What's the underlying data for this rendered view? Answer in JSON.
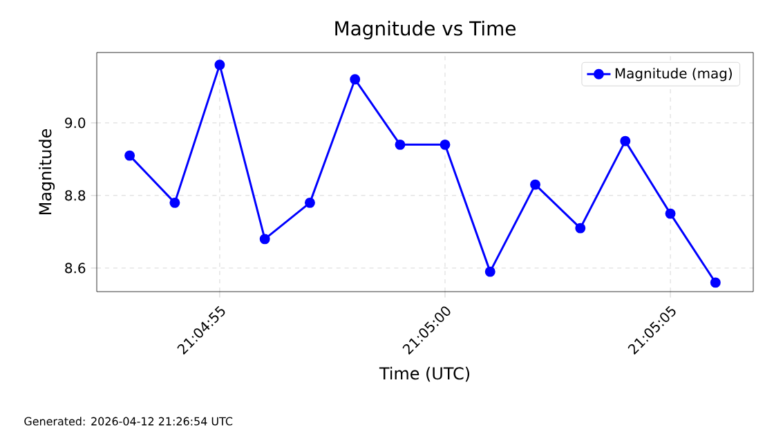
{
  "chart_data": {
    "type": "line",
    "title": "Magnitude vs Time",
    "xlabel": "Time (UTC)",
    "ylabel": "Magnitude",
    "x": [
      21.081389,
      21.081667,
      21.081944,
      21.082222,
      21.0825,
      21.082778,
      21.083056,
      21.083333,
      21.083611,
      21.083889,
      21.084167,
      21.084444,
      21.084722,
      21.085
    ],
    "series": [
      {
        "name": "Magnitude (mag)",
        "color": "#0000ff",
        "values": [
          8.91,
          8.78,
          9.16,
          8.68,
          8.78,
          9.12,
          8.94,
          8.94,
          8.59,
          8.83,
          8.71,
          8.95,
          8.75,
          8.56
        ]
      }
    ],
    "xlim": [
      21.081186,
      21.085233
    ],
    "ylim": [
      8.535,
      9.194
    ],
    "xticks": [
      {
        "value": 21.081944,
        "label": "21:04:55"
      },
      {
        "value": 21.083333,
        "label": "21:05:00"
      },
      {
        "value": 21.084722,
        "label": "21:05:05"
      }
    ],
    "yticks": [
      {
        "value": 8.6,
        "label": "8.6"
      },
      {
        "value": 8.8,
        "label": "8.8"
      },
      {
        "value": 9.0,
        "label": "9.0"
      }
    ],
    "grid": true,
    "legend": "top right",
    "marker": "circle",
    "line_style": "solid",
    "annotations": [
      "Generated: 2026-04-12 21:26:54 UTC"
    ]
  }
}
